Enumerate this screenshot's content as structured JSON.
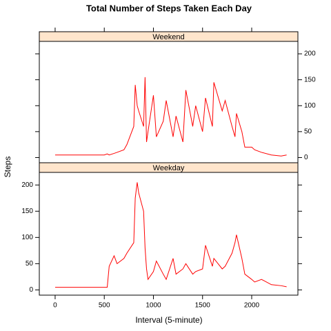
{
  "chart_data": {
    "type": "line",
    "title": "Total Number of Steps Taken Each Day",
    "xlabel": "Interval (5-minute)",
    "ylabel": "Steps",
    "strip_color": "#ffe5cc",
    "x": [
      0,
      200,
      400,
      500,
      530,
      550,
      600,
      630,
      700,
      730,
      800,
      815,
      835,
      850,
      900,
      915,
      930,
      945,
      1000,
      1030,
      1100,
      1130,
      1200,
      1230,
      1300,
      1330,
      1400,
      1430,
      1500,
      1530,
      1600,
      1615,
      1700,
      1730,
      1800,
      1830,
      1845,
      1900,
      1930,
      2000,
      2030,
      2100,
      2200,
      2300,
      2355
    ],
    "series": [
      {
        "name": "Weekend",
        "color": "#ff0000",
        "values": [
          5,
          5,
          5,
          5,
          7,
          5,
          8,
          10,
          15,
          25,
          60,
          140,
          100,
          90,
          60,
          155,
          30,
          50,
          120,
          40,
          70,
          110,
          40,
          80,
          30,
          130,
          60,
          100,
          50,
          115,
          60,
          145,
          90,
          110,
          60,
          40,
          85,
          50,
          20,
          20,
          15,
          10,
          5,
          3,
          5
        ]
      },
      {
        "name": "Weekday",
        "color": "#ff0000",
        "values": [
          5,
          5,
          5,
          5,
          5,
          45,
          65,
          50,
          60,
          70,
          90,
          175,
          205,
          185,
          150,
          80,
          40,
          20,
          35,
          55,
          30,
          20,
          60,
          30,
          40,
          50,
          30,
          35,
          40,
          85,
          45,
          60,
          40,
          45,
          70,
          90,
          105,
          60,
          30,
          20,
          15,
          20,
          10,
          8,
          6
        ]
      }
    ],
    "xlim": [
      -161,
      2470
    ],
    "xticks": [
      0,
      500,
      1000,
      1500,
      2000
    ],
    "ylim": [
      -10,
      224
    ],
    "yticks": [
      0,
      50,
      100,
      150,
      200
    ]
  }
}
